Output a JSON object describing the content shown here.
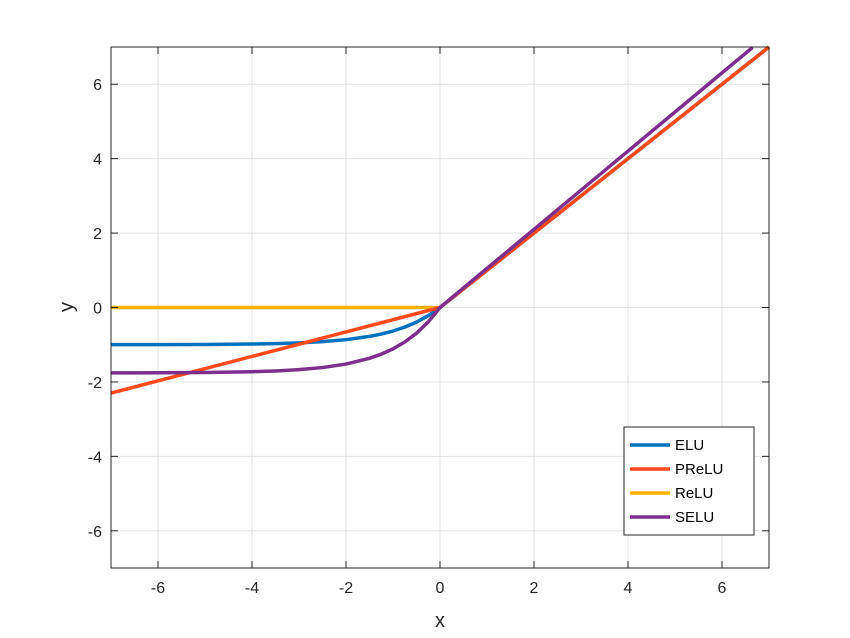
{
  "chart_data": {
    "type": "line",
    "title": "",
    "xlabel": "x",
    "ylabel": "y",
    "xlim": [
      -7,
      7
    ],
    "ylim": [
      -7,
      7
    ],
    "xticks": [
      -6,
      -4,
      -2,
      0,
      2,
      4,
      6
    ],
    "yticks": [
      -6,
      -4,
      -2,
      0,
      2,
      4,
      6
    ],
    "grid": true,
    "legend_position": "bottom-right",
    "series": [
      {
        "name": "ELU",
        "color": "#0072bd",
        "x": [
          -7,
          -6,
          -5,
          -4,
          -3.5,
          -3,
          -2.5,
          -2,
          -1.5,
          -1.25,
          -1,
          -0.75,
          -0.5,
          -0.25,
          0,
          1,
          2,
          3,
          4,
          5,
          6,
          7
        ],
        "y": [
          -0.999,
          -0.998,
          -0.993,
          -0.982,
          -0.97,
          -0.95,
          -0.918,
          -0.865,
          -0.777,
          -0.713,
          -0.632,
          -0.528,
          -0.393,
          -0.221,
          0,
          1,
          2,
          3,
          4,
          5,
          6,
          7
        ]
      },
      {
        "name": "PReLU",
        "color": "#ff4a1c",
        "x": [
          -7,
          0,
          7
        ],
        "y": [
          -2.3,
          0,
          7
        ]
      },
      {
        "name": "ReLU",
        "color": "#ffb000",
        "x": [
          -7,
          0,
          7
        ],
        "y": [
          0,
          0,
          7
        ]
      },
      {
        "name": "SELU",
        "color": "#7e2f8e",
        "x": [
          -7,
          -6,
          -5,
          -4,
          -3.5,
          -3,
          -2.5,
          -2,
          -1.5,
          -1.25,
          -1,
          -0.75,
          -0.5,
          -0.25,
          0,
          1,
          2,
          3,
          4,
          5,
          6,
          6.65
        ],
        "y": [
          -1.756,
          -1.754,
          -1.746,
          -1.726,
          -1.705,
          -1.67,
          -1.614,
          -1.52,
          -1.366,
          -1.254,
          -1.111,
          -0.928,
          -0.69,
          -0.388,
          0,
          1.051,
          2.101,
          3.152,
          4.203,
          5.254,
          6.304,
          6.987
        ]
      }
    ]
  }
}
